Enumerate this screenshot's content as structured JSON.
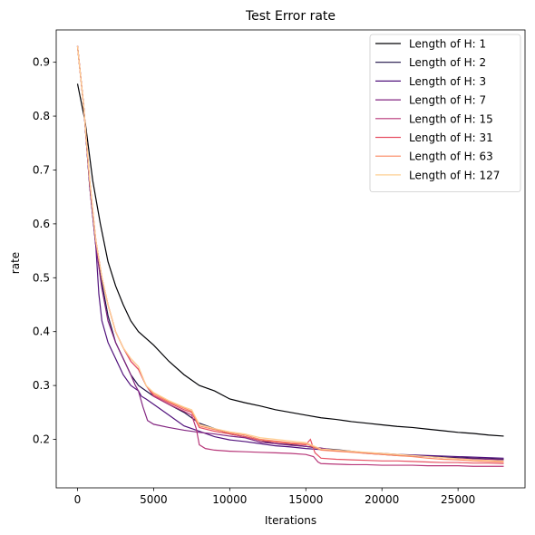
{
  "chart_data": {
    "type": "line",
    "title": "Test Error rate",
    "xlabel": "Iterations",
    "ylabel": "rate",
    "xlim": [
      -1400,
      29400
    ],
    "ylim": [
      0.11,
      0.96
    ],
    "xticks": [
      0,
      5000,
      10000,
      15000,
      20000,
      25000
    ],
    "yticks": [
      0.2,
      0.3,
      0.4,
      0.5,
      0.6,
      0.7,
      0.8,
      0.9
    ],
    "legend_position": "top-right",
    "grid": false,
    "series": [
      {
        "name": "Length of H: 1",
        "color": "#000004",
        "points": [
          [
            0,
            0.86
          ],
          [
            500,
            0.79
          ],
          [
            1000,
            0.68
          ],
          [
            1500,
            0.6
          ],
          [
            2000,
            0.53
          ],
          [
            2500,
            0.485
          ],
          [
            3000,
            0.45
          ],
          [
            3500,
            0.42
          ],
          [
            4000,
            0.4
          ],
          [
            5000,
            0.375
          ],
          [
            6000,
            0.345
          ],
          [
            7000,
            0.32
          ],
          [
            8000,
            0.3
          ],
          [
            9000,
            0.29
          ],
          [
            10000,
            0.275
          ],
          [
            11000,
            0.268
          ],
          [
            12000,
            0.262
          ],
          [
            13000,
            0.255
          ],
          [
            14000,
            0.25
          ],
          [
            15000,
            0.245
          ],
          [
            16000,
            0.24
          ],
          [
            17000,
            0.237
          ],
          [
            18000,
            0.233
          ],
          [
            19000,
            0.23
          ],
          [
            20000,
            0.227
          ],
          [
            21000,
            0.224
          ],
          [
            22000,
            0.222
          ],
          [
            23000,
            0.219
          ],
          [
            24000,
            0.216
          ],
          [
            25000,
            0.213
          ],
          [
            26000,
            0.211
          ],
          [
            27000,
            0.208
          ],
          [
            28000,
            0.206
          ]
        ]
      },
      {
        "name": "Length of H: 2",
        "color": "#1d1147",
        "points": [
          [
            0,
            0.93
          ],
          [
            400,
            0.82
          ],
          [
            800,
            0.67
          ],
          [
            1200,
            0.56
          ],
          [
            1600,
            0.49
          ],
          [
            2000,
            0.43
          ],
          [
            2500,
            0.38
          ],
          [
            3000,
            0.35
          ],
          [
            3500,
            0.32
          ],
          [
            4000,
            0.3
          ],
          [
            5000,
            0.28
          ],
          [
            6000,
            0.265
          ],
          [
            7000,
            0.25
          ],
          [
            8000,
            0.23
          ],
          [
            9000,
            0.22
          ],
          [
            10000,
            0.21
          ],
          [
            11000,
            0.205
          ],
          [
            12000,
            0.198
          ],
          [
            13000,
            0.192
          ],
          [
            14000,
            0.19
          ],
          [
            15000,
            0.187
          ],
          [
            16000,
            0.183
          ],
          [
            17000,
            0.181
          ],
          [
            18000,
            0.178
          ],
          [
            19000,
            0.175
          ],
          [
            20000,
            0.173
          ],
          [
            21000,
            0.171
          ],
          [
            22000,
            0.17
          ],
          [
            23000,
            0.169
          ],
          [
            24000,
            0.167
          ],
          [
            25000,
            0.166
          ],
          [
            26000,
            0.165
          ],
          [
            27000,
            0.164
          ],
          [
            28000,
            0.163
          ]
        ]
      },
      {
        "name": "Length of H: 3",
        "color": "#51127c",
        "points": [
          [
            0,
            0.93
          ],
          [
            400,
            0.82
          ],
          [
            800,
            0.67
          ],
          [
            1200,
            0.56
          ],
          [
            1400,
            0.47
          ],
          [
            1600,
            0.42
          ],
          [
            2000,
            0.38
          ],
          [
            2500,
            0.35
          ],
          [
            3000,
            0.32
          ],
          [
            3500,
            0.3
          ],
          [
            4000,
            0.29
          ],
          [
            4200,
            0.28
          ],
          [
            4500,
            0.275
          ],
          [
            5000,
            0.265
          ],
          [
            6000,
            0.245
          ],
          [
            7000,
            0.225
          ],
          [
            8000,
            0.215
          ],
          [
            9000,
            0.205
          ],
          [
            10000,
            0.199
          ],
          [
            11000,
            0.196
          ],
          [
            12000,
            0.192
          ],
          [
            13000,
            0.188
          ],
          [
            14000,
            0.186
          ],
          [
            15000,
            0.183
          ],
          [
            16000,
            0.181
          ],
          [
            17000,
            0.179
          ],
          [
            18000,
            0.177
          ],
          [
            19000,
            0.175
          ],
          [
            20000,
            0.174
          ],
          [
            21000,
            0.172
          ],
          [
            22000,
            0.171
          ],
          [
            23000,
            0.17
          ],
          [
            24000,
            0.169
          ],
          [
            25000,
            0.168
          ],
          [
            26000,
            0.167
          ],
          [
            27000,
            0.166
          ],
          [
            28000,
            0.165
          ]
        ]
      },
      {
        "name": "Length of H: 7",
        "color": "#832681",
        "points": [
          [
            0,
            0.93
          ],
          [
            400,
            0.82
          ],
          [
            800,
            0.67
          ],
          [
            1200,
            0.56
          ],
          [
            1600,
            0.48
          ],
          [
            2000,
            0.42
          ],
          [
            2500,
            0.38
          ],
          [
            3000,
            0.35
          ],
          [
            3500,
            0.32
          ],
          [
            3800,
            0.3
          ],
          [
            4000,
            0.29
          ],
          [
            4300,
            0.26
          ],
          [
            4600,
            0.235
          ],
          [
            5000,
            0.228
          ],
          [
            6000,
            0.222
          ],
          [
            7000,
            0.217
          ],
          [
            8000,
            0.213
          ],
          [
            9000,
            0.21
          ],
          [
            10000,
            0.206
          ],
          [
            11000,
            0.203
          ],
          [
            12000,
            0.195
          ],
          [
            13000,
            0.192
          ],
          [
            14000,
            0.189
          ],
          [
            15000,
            0.187
          ],
          [
            16000,
            0.184
          ],
          [
            17000,
            0.179
          ],
          [
            18000,
            0.177
          ],
          [
            19000,
            0.174
          ],
          [
            20000,
            0.172
          ],
          [
            21000,
            0.17
          ],
          [
            22000,
            0.169
          ],
          [
            23000,
            0.168
          ],
          [
            24000,
            0.166
          ],
          [
            25000,
            0.165
          ],
          [
            26000,
            0.164
          ],
          [
            27000,
            0.163
          ],
          [
            28000,
            0.162
          ]
        ]
      },
      {
        "name": "Length of H: 15",
        "color": "#b73779",
        "points": [
          [
            0,
            0.93
          ],
          [
            400,
            0.82
          ],
          [
            800,
            0.68
          ],
          [
            1200,
            0.57
          ],
          [
            1600,
            0.5
          ],
          [
            2000,
            0.45
          ],
          [
            2500,
            0.4
          ],
          [
            3000,
            0.37
          ],
          [
            3500,
            0.345
          ],
          [
            4000,
            0.33
          ],
          [
            4500,
            0.3
          ],
          [
            5000,
            0.28
          ],
          [
            6000,
            0.265
          ],
          [
            7000,
            0.252
          ],
          [
            7500,
            0.245
          ],
          [
            7800,
            0.22
          ],
          [
            8000,
            0.19
          ],
          [
            8400,
            0.183
          ],
          [
            9000,
            0.18
          ],
          [
            10000,
            0.178
          ],
          [
            11000,
            0.177
          ],
          [
            12000,
            0.176
          ],
          [
            13000,
            0.175
          ],
          [
            14000,
            0.174
          ],
          [
            15000,
            0.172
          ],
          [
            15500,
            0.168
          ],
          [
            15800,
            0.158
          ],
          [
            16000,
            0.155
          ],
          [
            17000,
            0.154
          ],
          [
            18000,
            0.153
          ],
          [
            19000,
            0.153
          ],
          [
            20000,
            0.152
          ],
          [
            21000,
            0.152
          ],
          [
            22000,
            0.152
          ],
          [
            23000,
            0.151
          ],
          [
            24000,
            0.151
          ],
          [
            25000,
            0.151
          ],
          [
            26000,
            0.15
          ],
          [
            27000,
            0.15
          ],
          [
            28000,
            0.15
          ]
        ]
      },
      {
        "name": "Length of H: 31",
        "color": "#e75263",
        "points": [
          [
            0,
            0.93
          ],
          [
            400,
            0.82
          ],
          [
            800,
            0.68
          ],
          [
            1200,
            0.57
          ],
          [
            1600,
            0.5
          ],
          [
            2000,
            0.45
          ],
          [
            2500,
            0.4
          ],
          [
            3000,
            0.37
          ],
          [
            3500,
            0.345
          ],
          [
            4000,
            0.33
          ],
          [
            4500,
            0.3
          ],
          [
            5000,
            0.282
          ],
          [
            6000,
            0.268
          ],
          [
            7000,
            0.255
          ],
          [
            7500,
            0.25
          ],
          [
            8000,
            0.222
          ],
          [
            9000,
            0.215
          ],
          [
            10000,
            0.21
          ],
          [
            11000,
            0.205
          ],
          [
            12000,
            0.198
          ],
          [
            13000,
            0.195
          ],
          [
            14000,
            0.192
          ],
          [
            15000,
            0.19
          ],
          [
            15300,
            0.2
          ],
          [
            15600,
            0.175
          ],
          [
            16000,
            0.165
          ],
          [
            17000,
            0.163
          ],
          [
            18000,
            0.162
          ],
          [
            19000,
            0.161
          ],
          [
            20000,
            0.16
          ],
          [
            21000,
            0.16
          ],
          [
            22000,
            0.159
          ],
          [
            23000,
            0.158
          ],
          [
            24000,
            0.157
          ],
          [
            25000,
            0.157
          ],
          [
            26000,
            0.156
          ],
          [
            27000,
            0.156
          ],
          [
            28000,
            0.155
          ]
        ]
      },
      {
        "name": "Length of H: 63",
        "color": "#fc8961",
        "points": [
          [
            0,
            0.93
          ],
          [
            400,
            0.82
          ],
          [
            800,
            0.68
          ],
          [
            1200,
            0.57
          ],
          [
            1600,
            0.5
          ],
          [
            2000,
            0.45
          ],
          [
            2500,
            0.4
          ],
          [
            3000,
            0.37
          ],
          [
            3500,
            0.35
          ],
          [
            4000,
            0.335
          ],
          [
            4500,
            0.3
          ],
          [
            5000,
            0.285
          ],
          [
            6000,
            0.27
          ],
          [
            7000,
            0.258
          ],
          [
            7500,
            0.252
          ],
          [
            8000,
            0.225
          ],
          [
            9000,
            0.218
          ],
          [
            10000,
            0.212
          ],
          [
            11000,
            0.208
          ],
          [
            12000,
            0.2
          ],
          [
            13000,
            0.197
          ],
          [
            14000,
            0.194
          ],
          [
            15000,
            0.192
          ],
          [
            16000,
            0.18
          ],
          [
            17000,
            0.178
          ],
          [
            18000,
            0.176
          ],
          [
            19000,
            0.174
          ],
          [
            20000,
            0.172
          ],
          [
            21000,
            0.17
          ],
          [
            22000,
            0.168
          ],
          [
            23000,
            0.165
          ],
          [
            24000,
            0.163
          ],
          [
            25000,
            0.162
          ],
          [
            26000,
            0.16
          ],
          [
            27000,
            0.159
          ],
          [
            28000,
            0.158
          ]
        ]
      },
      {
        "name": "Length of H: 127",
        "color": "#fecf92",
        "points": [
          [
            0,
            0.93
          ],
          [
            400,
            0.82
          ],
          [
            800,
            0.68
          ],
          [
            1200,
            0.57
          ],
          [
            1600,
            0.5
          ],
          [
            2000,
            0.45
          ],
          [
            2500,
            0.4
          ],
          [
            3000,
            0.37
          ],
          [
            3500,
            0.35
          ],
          [
            4000,
            0.335
          ],
          [
            4500,
            0.3
          ],
          [
            5000,
            0.287
          ],
          [
            6000,
            0.272
          ],
          [
            7000,
            0.26
          ],
          [
            7500,
            0.255
          ],
          [
            8000,
            0.228
          ],
          [
            9000,
            0.22
          ],
          [
            10000,
            0.214
          ],
          [
            11000,
            0.21
          ],
          [
            12000,
            0.203
          ],
          [
            13000,
            0.2
          ],
          [
            14000,
            0.197
          ],
          [
            15000,
            0.194
          ],
          [
            16000,
            0.182
          ],
          [
            17000,
            0.18
          ],
          [
            18000,
            0.178
          ],
          [
            19000,
            0.176
          ],
          [
            20000,
            0.174
          ],
          [
            21000,
            0.172
          ],
          [
            22000,
            0.17
          ],
          [
            23000,
            0.168
          ],
          [
            24000,
            0.166
          ],
          [
            25000,
            0.164
          ],
          [
            26000,
            0.162
          ],
          [
            27000,
            0.161
          ],
          [
            28000,
            0.16
          ]
        ]
      }
    ]
  }
}
